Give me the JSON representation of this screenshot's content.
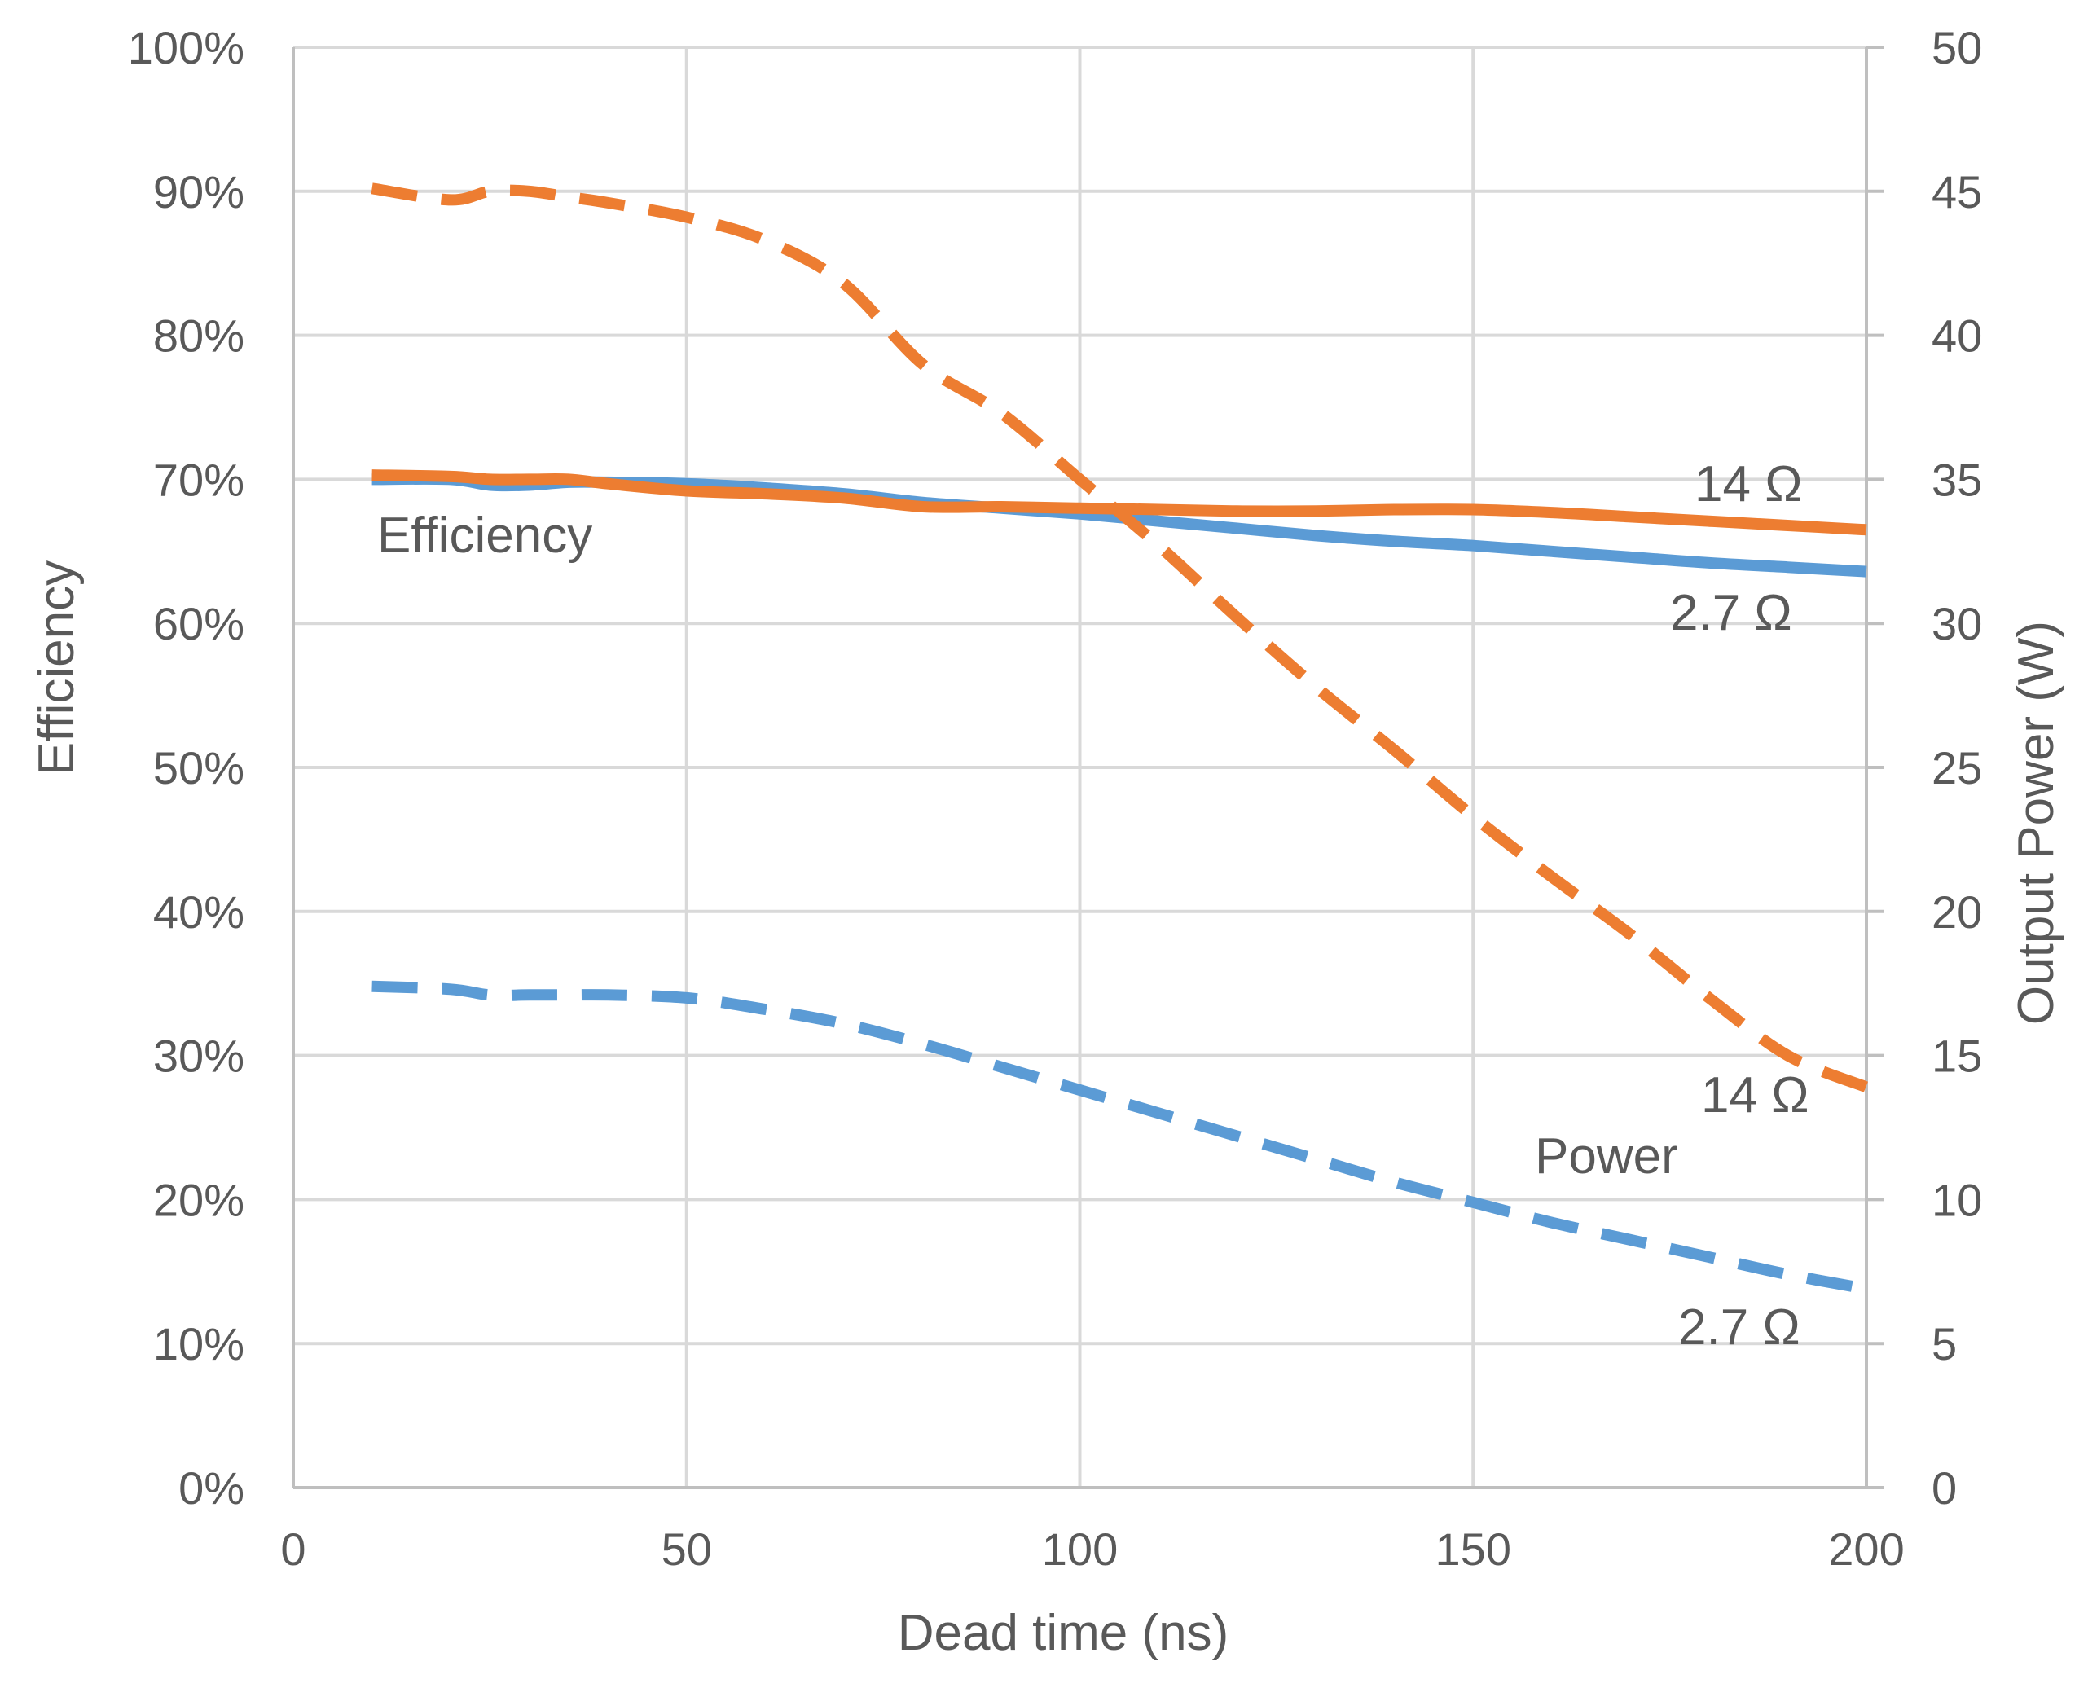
{
  "chart_data": {
    "type": "line",
    "title": "",
    "xlabel": "Dead time (ns)",
    "ylabel": "Efficiency",
    "y2label": "Output Power (W)",
    "xlim": [
      0,
      200
    ],
    "ylim": [
      0,
      100
    ],
    "y2lim": [
      0,
      50
    ],
    "x_ticks": [
      0,
      50,
      100,
      150,
      200
    ],
    "y_ticks": [
      "0%",
      "10%",
      "20%",
      "30%",
      "40%",
      "50%",
      "60%",
      "70%",
      "80%",
      "90%",
      "100%"
    ],
    "y2_ticks": [
      0,
      5,
      10,
      15,
      20,
      25,
      30,
      35,
      40,
      45,
      50
    ],
    "grid": true,
    "series": [
      {
        "name": "Efficiency 2.7 Ω",
        "axis": "left",
        "style": "solid",
        "color": "#5B9BD5",
        "x": [
          10,
          20,
          25,
          30,
          35,
          40,
          50,
          60,
          70,
          80,
          90,
          100,
          110,
          120,
          130,
          140,
          150,
          160,
          170,
          180,
          190,
          200
        ],
        "y": [
          70.0,
          70.0,
          69.6,
          69.6,
          69.8,
          69.8,
          69.7,
          69.4,
          69.0,
          68.4,
          68.0,
          67.6,
          67.1,
          66.6,
          66.1,
          65.7,
          65.4,
          65.0,
          64.6,
          64.2,
          63.9,
          63.6
        ]
      },
      {
        "name": "Efficiency 14 Ω",
        "axis": "left",
        "style": "solid",
        "color": "#ED7D31",
        "x": [
          10,
          20,
          25,
          30,
          35,
          40,
          50,
          60,
          70,
          80,
          90,
          100,
          110,
          120,
          130,
          140,
          150,
          160,
          170,
          180,
          190,
          200
        ],
        "y": [
          70.3,
          70.2,
          70.0,
          70.0,
          70.0,
          69.7,
          69.2,
          69.0,
          68.7,
          68.1,
          68.1,
          68.0,
          67.9,
          67.8,
          67.8,
          67.9,
          67.9,
          67.7,
          67.4,
          67.1,
          66.8,
          66.5
        ]
      },
      {
        "name": "Power 14 Ω",
        "axis": "right",
        "style": "dashed",
        "color": "#ED7D31",
        "x": [
          10,
          20,
          25,
          30,
          35,
          40,
          50,
          60,
          70,
          80,
          90,
          100,
          110,
          120,
          130,
          140,
          150,
          160,
          170,
          180,
          190,
          200
        ],
        "y": [
          45.1,
          44.7,
          45.0,
          45.0,
          44.8,
          44.6,
          44.1,
          43.3,
          41.8,
          39.0,
          37.3,
          35.0,
          32.7,
          30.2,
          27.8,
          25.6,
          23.3,
          21.2,
          19.2,
          17.0,
          15.0,
          13.9
        ]
      },
      {
        "name": "Power 2.7 Ω",
        "axis": "right",
        "style": "dashed",
        "color": "#5B9BD5",
        "x": [
          10,
          20,
          25,
          30,
          35,
          40,
          50,
          60,
          70,
          80,
          90,
          100,
          110,
          120,
          130,
          140,
          150,
          160,
          170,
          180,
          190,
          200
        ],
        "y": [
          17.4,
          17.3,
          17.1,
          17.1,
          17.1,
          17.1,
          17.0,
          16.6,
          16.1,
          15.4,
          14.6,
          13.8,
          13.0,
          12.2,
          11.4,
          10.6,
          9.9,
          9.2,
          8.6,
          8.0,
          7.4,
          6.9
        ]
      }
    ],
    "annotations": {
      "efficiency_label": "Efficiency",
      "eff_14": "14 Ω",
      "eff_27": "2.7 Ω",
      "power_label": "Power",
      "pow_14": "14 Ω",
      "pow_27": "2.7 Ω"
    }
  }
}
